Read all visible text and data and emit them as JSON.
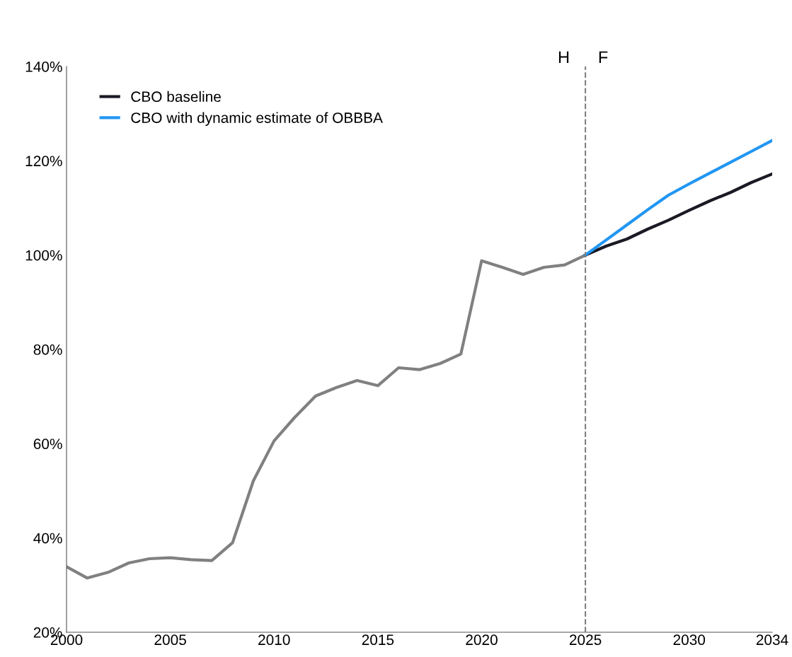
{
  "chart_data": {
    "type": "line",
    "series": [
      {
        "color": "#808080",
        "x": [
          2000,
          2001,
          2002,
          2003,
          2004,
          2005,
          2006,
          2007,
          2008,
          2009,
          2010,
          2011,
          2012,
          2013,
          2014,
          2015,
          2016,
          2017,
          2018,
          2019,
          2020,
          2021,
          2022,
          2023,
          2024,
          2025
        ],
        "values": [
          33.9,
          31.5,
          32.7,
          34.7,
          35.6,
          35.8,
          35.4,
          35.2,
          39.0,
          52.1,
          60.6,
          65.6,
          70.1,
          71.9,
          73.4,
          72.3,
          76.1,
          75.7,
          77.0,
          79.0,
          98.8,
          97.4,
          95.9,
          97.4,
          97.9,
          100.0
        ]
      },
      {
        "name": "CBO baseline",
        "color": "#1a1a24",
        "x": [
          2025,
          2026,
          2027,
          2028,
          2029,
          2030,
          2031,
          2032,
          2033,
          2034
        ],
        "values": [
          100.0,
          101.9,
          103.4,
          105.5,
          107.4,
          109.5,
          111.5,
          113.3,
          115.4,
          117.2
        ]
      },
      {
        "name": "CBO with dynamic estimate of OBBBA",
        "color": "#2196f3",
        "x": [
          2025,
          2026,
          2027,
          2028,
          2029,
          2030,
          2031,
          2032,
          2033,
          2034
        ],
        "values": [
          100.0,
          103.2,
          106.4,
          109.6,
          112.7,
          115.1,
          117.4,
          119.7,
          122.0,
          124.3
        ]
      }
    ],
    "xlim": [
      2000,
      2034
    ],
    "xticks": [
      2000,
      2005,
      2010,
      2015,
      2020,
      2025,
      2030,
      2034
    ],
    "ylim": [
      20,
      140
    ],
    "yticks": [
      {
        "value": 20,
        "label": "20%"
      },
      {
        "value": 40,
        "label": "40%"
      },
      {
        "value": 60,
        "label": "60%"
      },
      {
        "value": 80,
        "label": "80%"
      },
      {
        "value": 100,
        "label": "100%"
      },
      {
        "value": 120,
        "label": "120%"
      },
      {
        "value": 140,
        "label": "140%"
      }
    ],
    "ref_lines": [
      {
        "axis": "x",
        "value": 2025,
        "color": "#808080",
        "line_style": "dashed"
      }
    ],
    "annotations": [
      "H",
      "F"
    ],
    "legend": "top left",
    "grid": false,
    "marker": "none",
    "line_style": "solid"
  }
}
